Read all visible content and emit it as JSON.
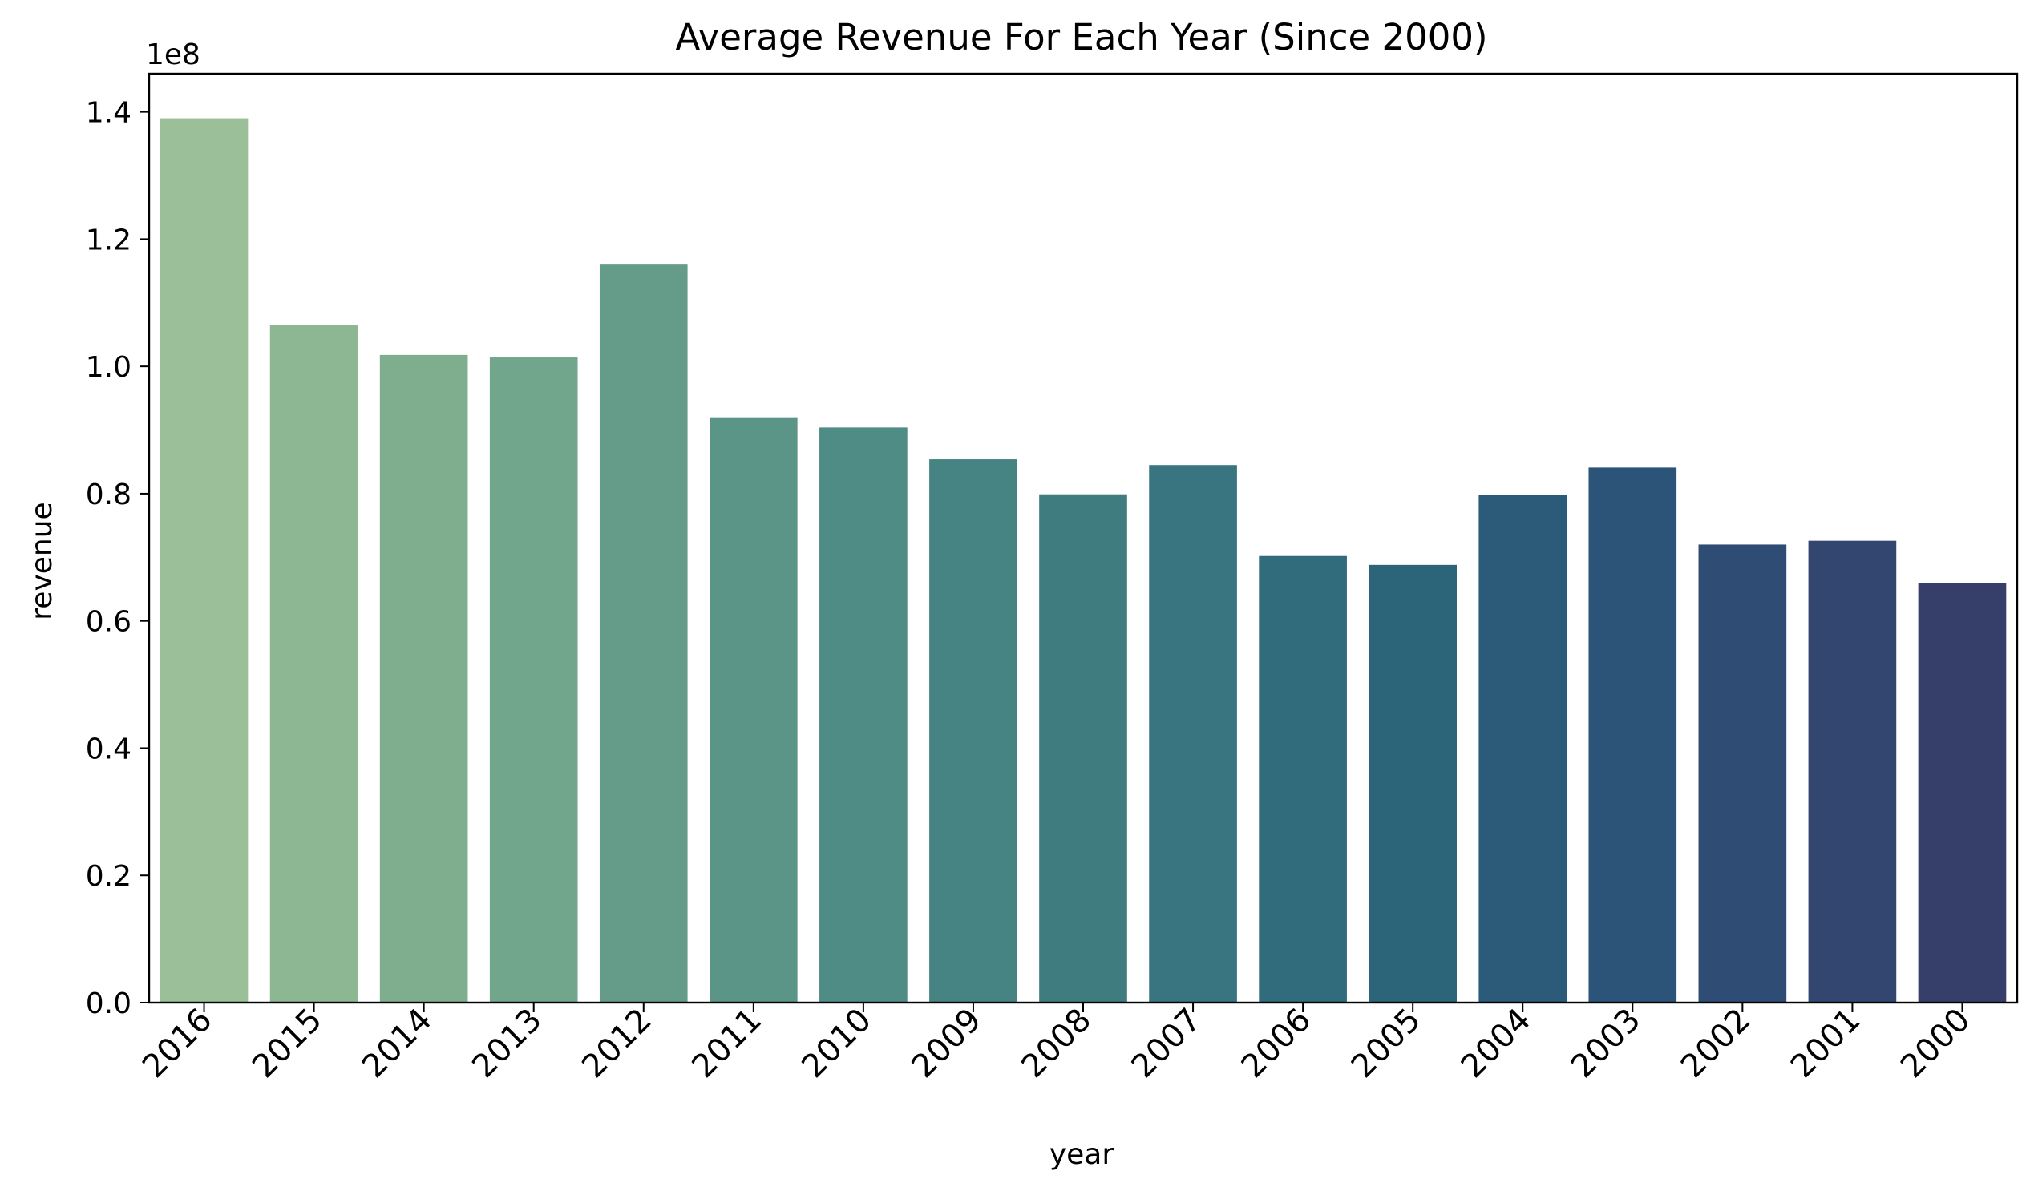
{
  "chart_data": {
    "type": "bar",
    "title": "Average Revenue For Each Year (Since 2000)",
    "xlabel": "year",
    "ylabel": "revenue",
    "y_offset_label": "1e8",
    "y_scale_factor": 100000000,
    "categories": [
      "2016",
      "2015",
      "2014",
      "2013",
      "2012",
      "2011",
      "2010",
      "2009",
      "2008",
      "2007",
      "2006",
      "2005",
      "2004",
      "2003",
      "2002",
      "2001",
      "2000"
    ],
    "values": [
      139000000,
      106500000,
      101800000,
      101400000,
      116000000,
      92000000,
      90400000,
      85400000,
      79900000,
      84500000,
      70200000,
      68800000,
      79800000,
      84100000,
      72000000,
      72600000,
      66000000
    ],
    "colors": [
      "#9bbf98",
      "#8db792",
      "#7fae8f",
      "#72a68c",
      "#649c89",
      "#5a9587",
      "#4f8c86",
      "#468483",
      "#3f7c7f",
      "#387580",
      "#316c7c",
      "#2c657a",
      "#2b5b79",
      "#2c5478",
      "#2f4c74",
      "#334670",
      "#363f69"
    ],
    "ylim": [
      0,
      146000000
    ],
    "yticks": [
      0,
      20000000,
      40000000,
      60000000,
      80000000,
      100000000,
      120000000,
      140000000
    ],
    "ytick_labels": [
      "0.0",
      "0.2",
      "0.4",
      "0.6",
      "0.8",
      "1.0",
      "1.2",
      "1.4"
    ],
    "grid": false,
    "legend": "none"
  }
}
